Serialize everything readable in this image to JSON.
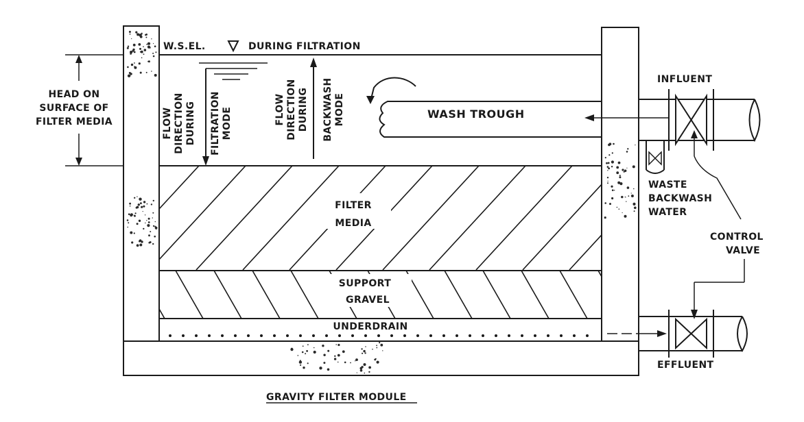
{
  "title": "GRAVITY FILTER MODULE",
  "labels": {
    "wsel": "W.S.EL.",
    "during_filtration": "DURING FILTRATION",
    "head_line1": "HEAD ON",
    "head_line2": "SURFACE OF",
    "head_line3": "FILTER MEDIA",
    "flow_filtration": [
      "FLOW",
      "DIRECTION",
      "DURING",
      "FILTRATION",
      "MODE"
    ],
    "flow_backwash": [
      "FLOW",
      "DIRECTION",
      "DURING",
      "BACKWASH",
      "MODE"
    ],
    "wash_trough": "WASH TROUGH",
    "influent": "INFLUENT",
    "waste1": "WASTE",
    "waste2": "BACKWASH",
    "waste3": "WATER",
    "control1": "CONTROL",
    "control2": "VALVE",
    "filter_media1": "FILTER",
    "filter_media2": "MEDIA",
    "support1": "SUPPORT",
    "support2": "GRAVEL",
    "underdrain": "UNDERDRAIN",
    "effluent": "EFFLUENT"
  }
}
